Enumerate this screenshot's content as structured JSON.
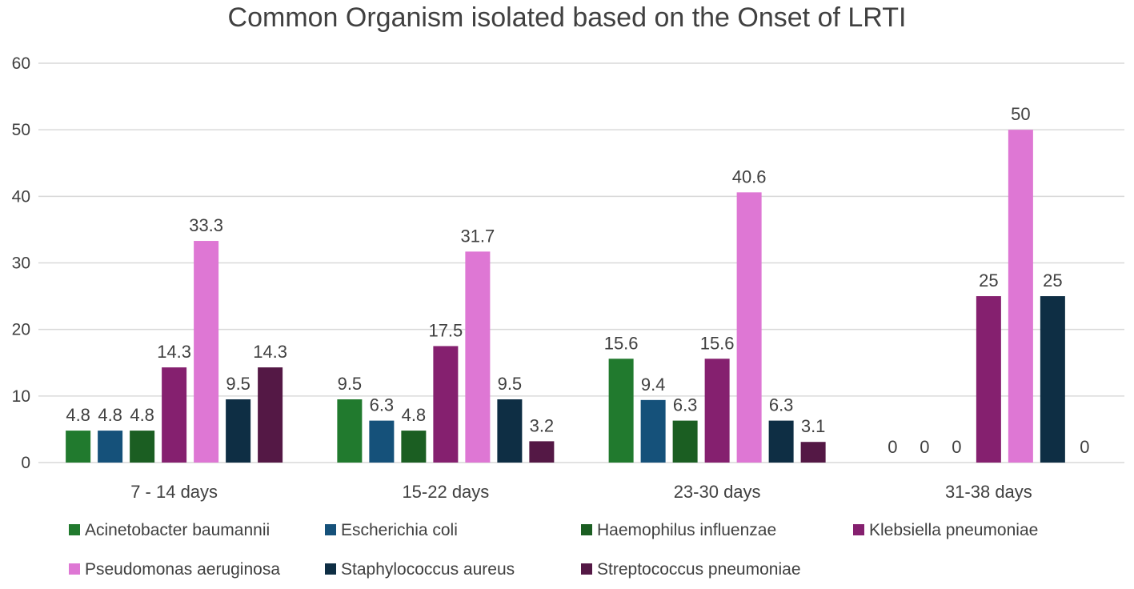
{
  "chart_data": {
    "type": "bar",
    "title": "Common Organism isolated based on the Onset of LRTI",
    "xlabel": "",
    "ylabel": "",
    "ylim": [
      0,
      60
    ],
    "yticks": [
      0,
      10,
      20,
      30,
      40,
      50,
      60
    ],
    "grid": true,
    "legend_position": "bottom",
    "categories": [
      "7 - 14 days",
      "15-22 days",
      "23-30 days",
      "31-38 days"
    ],
    "series": [
      {
        "name": "Acinetobacter baumannii",
        "color": "#217A2E",
        "values": [
          4.8,
          9.5,
          15.6,
          0
        ],
        "labels": [
          "4.8",
          "9.5",
          "15.6",
          "0"
        ]
      },
      {
        "name": "Escherichia coli",
        "color": "#15517A",
        "values": [
          4.8,
          6.3,
          9.4,
          0
        ],
        "labels": [
          "4.8",
          "6.3",
          "9.4",
          "0"
        ]
      },
      {
        "name": "Haemophilus influenzae",
        "color": "#1B5E22",
        "values": [
          4.8,
          4.8,
          6.3,
          0
        ],
        "labels": [
          "4.8",
          "4.8",
          "6.3",
          "0"
        ]
      },
      {
        "name": "Klebsiella pneumoniae",
        "color": "#85206F",
        "values": [
          14.3,
          17.5,
          15.6,
          25
        ],
        "labels": [
          "14.3",
          "17.5",
          "15.6",
          "25"
        ]
      },
      {
        "name": "Pseudomonas aeruginosa",
        "color": "#DE77D4",
        "values": [
          33.3,
          31.7,
          40.6,
          50
        ],
        "labels": [
          "33.3",
          "31.7",
          "40.6",
          "50"
        ]
      },
      {
        "name": "Staphylococcus aureus",
        "color": "#0E2E44",
        "values": [
          9.5,
          9.5,
          6.3,
          25
        ],
        "labels": [
          "9.5",
          "9.5",
          "6.3",
          "25"
        ]
      },
      {
        "name": "Streptococcus pneumoniae",
        "color": "#541845",
        "values": [
          14.3,
          3.2,
          3.1,
          0
        ],
        "labels": [
          "14.3",
          "3.2",
          "3.1",
          "0"
        ]
      }
    ]
  }
}
